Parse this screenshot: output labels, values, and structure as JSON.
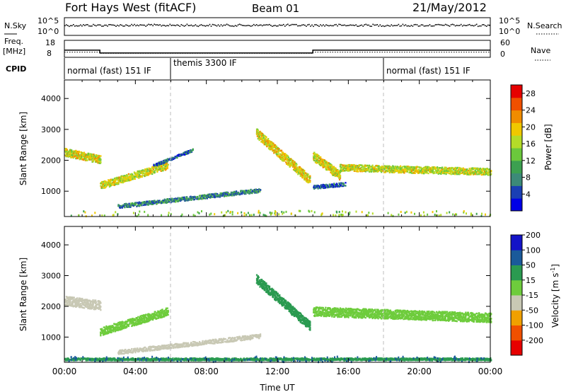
{
  "header": {
    "station": "Fort Hays West (fitACF)",
    "beam": "Beam 01",
    "date": "21/May/2012"
  },
  "colors": {
    "power_scale": [
      "#0000e6",
      "#1a3fb4",
      "#3c8a78",
      "#3ca050",
      "#6bc83c",
      "#b4dc28",
      "#f0c800",
      "#f08c00",
      "#f05000",
      "#e60000"
    ],
    "velocity_scale": [
      "#e60000",
      "#f05000",
      "#f0a000",
      "#c8c8b4",
      "#6ecc3c",
      "#2a9a50",
      "#1a5a9a",
      "#1414c8"
    ],
    "noise_dot": "#000000",
    "mode_divider": "#bdbdbd"
  },
  "noise_panel": {
    "left_label": "N.Sky",
    "right_label": "N.Search",
    "left_ticks": [
      "10^5",
      "10^0"
    ],
    "right_ticks": [
      "10^5",
      "10^0"
    ]
  },
  "freq_panel": {
    "left_label_top": "Freq.",
    "left_label_unit": "[MHz]",
    "right_label": "Nave",
    "left_ticks": [
      "18",
      "8"
    ],
    "right_ticks": [
      "60",
      "0"
    ]
  },
  "cpid": {
    "label": "CPID",
    "segments": [
      {
        "label": "normal (fast) 151 IF",
        "start_hour": 0
      },
      {
        "label": "themis 3300 IF",
        "start_hour": 6
      },
      {
        "label": "normal (fast) 151 IF",
        "start_hour": 18
      }
    ]
  },
  "chart_data": [
    {
      "type": "heatmap",
      "title": "Power",
      "x_range_hours": [
        0,
        24
      ],
      "ylabel": "Slant Range [km]",
      "ylim": [
        180,
        4600
      ],
      "y_ticks": [
        1000,
        2000,
        3000,
        4000
      ],
      "colorbar": {
        "label": "Power [dB]",
        "ticks": [
          "4",
          "8",
          "12",
          "16",
          "20",
          "24",
          "28"
        ],
        "range": [
          0,
          30
        ]
      },
      "bands": [
        {
          "h0": 0.0,
          "h1": 2.0,
          "r0": 2280,
          "r1": 2050,
          "w": 260,
          "v": 18
        },
        {
          "h0": 2.0,
          "h1": 5.8,
          "r0": 1200,
          "r1": 1850,
          "w": 230,
          "v": 17
        },
        {
          "h0": 3.0,
          "h1": 11.0,
          "r0": 530,
          "r1": 1050,
          "w": 130,
          "v": 8
        },
        {
          "h0": 5.0,
          "h1": 7.2,
          "r0": 1850,
          "r1": 2350,
          "w": 90,
          "v": 6
        },
        {
          "h0": 10.8,
          "h1": 13.8,
          "r0": 2900,
          "r1": 1380,
          "w": 300,
          "v": 19
        },
        {
          "h0": 14.0,
          "h1": 15.5,
          "r0": 2150,
          "r1": 1520,
          "w": 300,
          "v": 18
        },
        {
          "h0": 15.5,
          "h1": 24.0,
          "r0": 1780,
          "r1": 1650,
          "w": 220,
          "v": 17
        },
        {
          "h0": 14.0,
          "h1": 15.8,
          "r0": 1150,
          "r1": 1250,
          "w": 120,
          "v": 6
        }
      ]
    },
    {
      "type": "heatmap",
      "title": "Velocity",
      "x_range_hours": [
        0,
        24
      ],
      "ylabel": "Slant Range [km]",
      "ylim": [
        180,
        4600
      ],
      "y_ticks": [
        1000,
        2000,
        3000,
        4000
      ],
      "xlabel": "Time UT",
      "x_ticks": [
        "00:00",
        "04:00",
        "08:00",
        "12:00",
        "16:00",
        "20:00",
        "00:00"
      ],
      "colorbar": {
        "label": "Velocity [m s^-1]",
        "ticks": [
          "-200",
          "-100",
          "-50",
          "-15",
          "15",
          "50",
          "100",
          "200"
        ],
        "range": [
          -250,
          250
        ]
      },
      "bands": [
        {
          "h0": 0.0,
          "h1": 2.0,
          "r0": 2200,
          "r1": 2050,
          "w": 300,
          "v": -20
        },
        {
          "h0": 2.0,
          "h1": 5.8,
          "r0": 1200,
          "r1": 1850,
          "w": 260,
          "v": 0
        },
        {
          "h0": 3.0,
          "h1": 11.0,
          "r0": 530,
          "r1": 1050,
          "w": 140,
          "v": -40
        },
        {
          "h0": 10.8,
          "h1": 13.8,
          "r0": 2900,
          "r1": 1380,
          "w": 300,
          "v": 30
        },
        {
          "h0": 14.0,
          "h1": 24.0,
          "r0": 1850,
          "r1": 1650,
          "w": 300,
          "v": 0
        },
        {
          "h0": 0.0,
          "h1": 24.0,
          "r0": 300,
          "r1": 300,
          "w": 80,
          "v": 40
        }
      ]
    }
  ]
}
